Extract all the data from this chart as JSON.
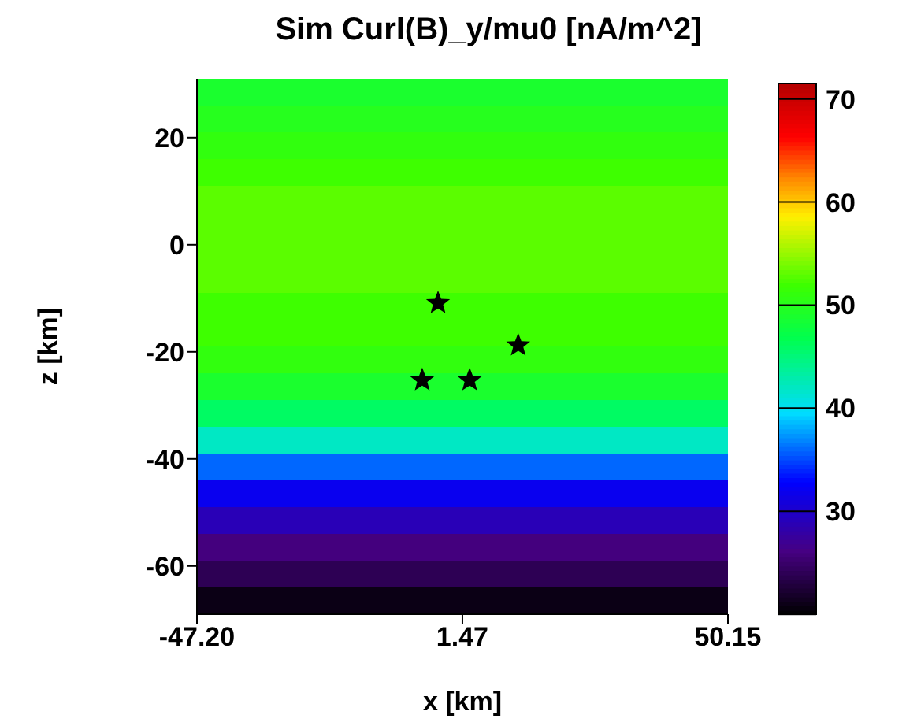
{
  "chart_data": {
    "type": "heatmap",
    "title": "Sim Curl(B)_y/mu0 [nA/m^2]",
    "xlabel": "x [km]",
    "ylabel": "z [km]",
    "xlim": [
      -47.2,
      50.15
    ],
    "xticks": [
      {
        "value": -47.2,
        "label": "-47.20"
      },
      1.47,
      {
        "value": 50.15,
        "label": "50.15"
      }
    ],
    "ylim": [
      -69,
      31
    ],
    "yticks": [
      -60,
      -40,
      -20,
      0,
      20
    ],
    "cells": [
      [
        49
      ],
      [
        50
      ],
      [
        51
      ],
      [
        52
      ],
      [
        53
      ],
      [
        53
      ],
      [
        53
      ],
      [
        53
      ],
      [
        52
      ],
      [
        52
      ],
      [
        51
      ],
      [
        49
      ],
      [
        46
      ],
      [
        42
      ],
      [
        36
      ],
      [
        32
      ],
      [
        29
      ],
      [
        26
      ],
      [
        24
      ],
      [
        21
      ]
    ],
    "clim": [
      20,
      71.5
    ],
    "cticks": [
      30,
      40,
      50,
      60,
      70
    ],
    "series": [
      {
        "type": "scatter",
        "marker": "star",
        "color": "#000000",
        "x": [
          -3.0,
          11.7,
          -5.9,
          2.8
        ],
        "values": [
          -10.9,
          -18.8,
          -25.3,
          -25.3
        ]
      }
    ]
  }
}
